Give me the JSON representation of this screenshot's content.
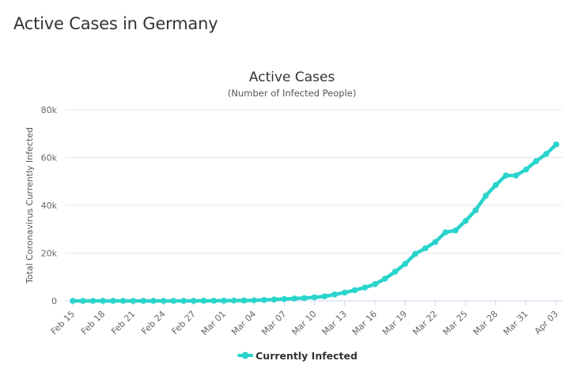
{
  "page": {
    "heading": "Active Cases in Germany"
  },
  "chart_data": {
    "type": "line",
    "title": "Active Cases",
    "subtitle": "(Number of Infected People)",
    "xlabel": "",
    "ylabel": "Total Coronavirus Currently Infected",
    "ylim": [
      0,
      80000
    ],
    "yticks": [
      0,
      20000,
      40000,
      60000,
      80000
    ],
    "ytick_labels": [
      "0",
      "20k",
      "40k",
      "60k",
      "80k"
    ],
    "xtick_labels": [
      "Feb 15",
      "Feb 18",
      "Feb 21",
      "Feb 24",
      "Feb 27",
      "Mar 01",
      "Mar 04",
      "Mar 07",
      "Mar 10",
      "Mar 13",
      "Mar 16",
      "Mar 19",
      "Mar 22",
      "Mar 25",
      "Mar 28",
      "Mar 31",
      "Apr 03"
    ],
    "x": [
      "Feb 15",
      "Feb 16",
      "Feb 17",
      "Feb 18",
      "Feb 19",
      "Feb 20",
      "Feb 21",
      "Feb 22",
      "Feb 23",
      "Feb 24",
      "Feb 25",
      "Feb 26",
      "Feb 27",
      "Feb 28",
      "Feb 29",
      "Mar 01",
      "Mar 02",
      "Mar 03",
      "Mar 04",
      "Mar 05",
      "Mar 06",
      "Mar 07",
      "Mar 08",
      "Mar 09",
      "Mar 10",
      "Mar 11",
      "Mar 12",
      "Mar 13",
      "Mar 14",
      "Mar 15",
      "Mar 16",
      "Mar 17",
      "Mar 18",
      "Mar 19",
      "Mar 20",
      "Mar 21",
      "Mar 22",
      "Mar 23",
      "Mar 24",
      "Mar 25",
      "Mar 26",
      "Mar 27",
      "Mar 28",
      "Mar 29",
      "Mar 30",
      "Mar 31",
      "Apr 01",
      "Apr 02",
      "Apr 03"
    ],
    "series": [
      {
        "name": "Currently Infected",
        "color": "#2ad4cc",
        "values": [
          12,
          12,
          12,
          12,
          12,
          12,
          12,
          12,
          12,
          12,
          15,
          20,
          40,
          50,
          70,
          110,
          150,
          180,
          250,
          400,
          600,
          800,
          1000,
          1200,
          1500,
          1900,
          2700,
          3500,
          4500,
          5600,
          7000,
          9300,
          12200,
          15500,
          19700,
          22000,
          24700,
          28700,
          29500,
          33500,
          38000,
          44000,
          48500,
          52500,
          52500,
          55000,
          58500,
          61500,
          65500
        ]
      }
    ],
    "legend": {
      "position": "bottom-center",
      "label": "Currently Infected"
    },
    "grid": true
  }
}
